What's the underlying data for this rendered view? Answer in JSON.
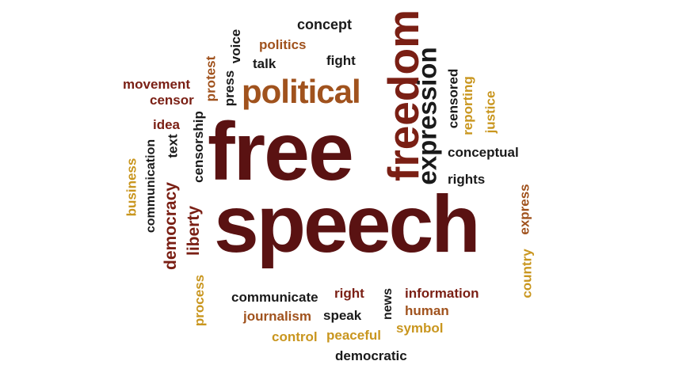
{
  "word_cloud": {
    "palette": {
      "dark_red": "#5a1212",
      "brown": "#a0521d",
      "gold": "#c9961f",
      "black": "#1a1a1a",
      "burgundy": "#7a1f14"
    },
    "words": [
      {
        "text": "free",
        "color": "#5a1212",
        "orientation": "horizontal"
      },
      {
        "text": "speech",
        "color": "#5a1212",
        "orientation": "horizontal"
      },
      {
        "text": "freedom",
        "color": "#7a1f14",
        "orientation": "vertical"
      },
      {
        "text": "expression",
        "color": "#1a1a1a",
        "orientation": "vertical"
      },
      {
        "text": "political",
        "color": "#a0521d",
        "orientation": "horizontal"
      },
      {
        "text": "concept",
        "color": "#1a1a1a",
        "orientation": "horizontal"
      },
      {
        "text": "politics",
        "color": "#a0521d",
        "orientation": "horizontal"
      },
      {
        "text": "talk",
        "color": "#1a1a1a",
        "orientation": "horizontal"
      },
      {
        "text": "fight",
        "color": "#1a1a1a",
        "orientation": "horizontal"
      },
      {
        "text": "voice",
        "color": "#1a1a1a",
        "orientation": "vertical"
      },
      {
        "text": "press",
        "color": "#1a1a1a",
        "orientation": "vertical"
      },
      {
        "text": "protest",
        "color": "#a0521d",
        "orientation": "vertical"
      },
      {
        "text": "movement",
        "color": "#7a1f14",
        "orientation": "horizontal"
      },
      {
        "text": "censor",
        "color": "#7a1f14",
        "orientation": "horizontal"
      },
      {
        "text": "idea",
        "color": "#7a1f14",
        "orientation": "horizontal"
      },
      {
        "text": "censorship",
        "color": "#1a1a1a",
        "orientation": "vertical"
      },
      {
        "text": "text",
        "color": "#1a1a1a",
        "orientation": "vertical"
      },
      {
        "text": "communication",
        "color": "#1a1a1a",
        "orientation": "vertical"
      },
      {
        "text": "business",
        "color": "#c9961f",
        "orientation": "vertical"
      },
      {
        "text": "democracy",
        "color": "#7a1f14",
        "orientation": "vertical"
      },
      {
        "text": "liberty",
        "color": "#7a1f14",
        "orientation": "vertical"
      },
      {
        "text": "censored",
        "color": "#1a1a1a",
        "orientation": "vertical"
      },
      {
        "text": "reporting",
        "color": "#c9961f",
        "orientation": "vertical"
      },
      {
        "text": "justice",
        "color": "#c9961f",
        "orientation": "vertical"
      },
      {
        "text": "conceptual",
        "color": "#1a1a1a",
        "orientation": "horizontal"
      },
      {
        "text": "rights",
        "color": "#1a1a1a",
        "orientation": "horizontal"
      },
      {
        "text": "express",
        "color": "#a0521d",
        "orientation": "vertical"
      },
      {
        "text": "country",
        "color": "#c9961f",
        "orientation": "vertical"
      },
      {
        "text": "process",
        "color": "#c9961f",
        "orientation": "vertical"
      },
      {
        "text": "communicate",
        "color": "#1a1a1a",
        "orientation": "horizontal"
      },
      {
        "text": "right",
        "color": "#7a1f14",
        "orientation": "horizontal"
      },
      {
        "text": "news",
        "color": "#1a1a1a",
        "orientation": "vertical"
      },
      {
        "text": "information",
        "color": "#7a1f14",
        "orientation": "horizontal"
      },
      {
        "text": "journalism",
        "color": "#a0521d",
        "orientation": "horizontal"
      },
      {
        "text": "speak",
        "color": "#1a1a1a",
        "orientation": "horizontal"
      },
      {
        "text": "human",
        "color": "#a0521d",
        "orientation": "horizontal"
      },
      {
        "text": "symbol",
        "color": "#c9961f",
        "orientation": "horizontal"
      },
      {
        "text": "control",
        "color": "#c9961f",
        "orientation": "horizontal"
      },
      {
        "text": "peaceful",
        "color": "#c9961f",
        "orientation": "horizontal"
      },
      {
        "text": "democratic",
        "color": "#1a1a1a",
        "orientation": "horizontal"
      }
    ]
  }
}
